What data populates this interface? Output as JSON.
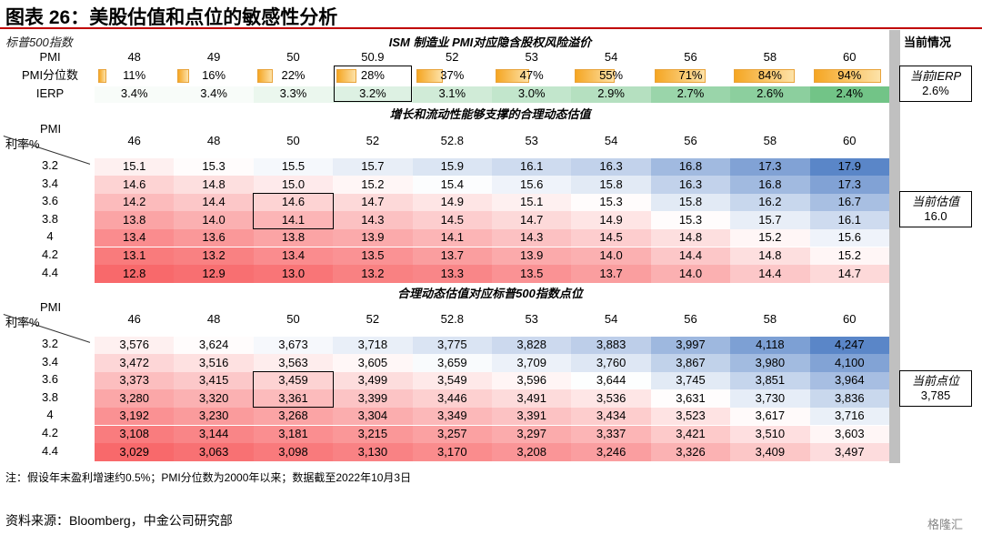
{
  "title": "图表 26：美股估值和点位的敏感性分析",
  "left_label": "标普500指数",
  "current_header": "当前情况",
  "colors": {
    "accent_red": "#c00000",
    "bar_orange": "#f5a623",
    "green": "#63be7b",
    "blue": "#5a86c8",
    "red": "#f8696b"
  },
  "chart_data": [
    {
      "type": "table",
      "title": "ISM 制造业 PMI对应隐含股权风险溢价",
      "rows": [
        {
          "label": "PMI",
          "values": [
            "48",
            "49",
            "50",
            "50.9",
            "52",
            "53",
            "54",
            "56",
            "58",
            "60"
          ]
        },
        {
          "label": "PMI分位数",
          "values": [
            "11%",
            "16%",
            "22%",
            "28%",
            "37%",
            "47%",
            "55%",
            "71%",
            "84%",
            "94%"
          ],
          "fractions": [
            0.11,
            0.16,
            0.22,
            0.28,
            0.37,
            0.47,
            0.55,
            0.71,
            0.84,
            0.94
          ]
        },
        {
          "label": "IERP",
          "values": [
            "3.4%",
            "3.4%",
            "3.3%",
            "3.2%",
            "3.1%",
            "3.0%",
            "2.9%",
            "2.7%",
            "2.6%",
            "2.4%"
          ],
          "numbers": [
            3.4,
            3.4,
            3.3,
            3.2,
            3.1,
            3.0,
            2.9,
            2.7,
            2.6,
            2.4
          ]
        }
      ],
      "highlight_col": 3
    },
    {
      "type": "heatmap",
      "title": "增长和流动性能够支撑的合理动态估值",
      "col_header": "PMI",
      "row_header": "利率%",
      "columns": [
        "46",
        "48",
        "50",
        "52",
        "52.8",
        "53",
        "54",
        "56",
        "58",
        "60"
      ],
      "rows": [
        "3.2",
        "3.4",
        "3.6",
        "3.8",
        "4",
        "4.2",
        "4.4"
      ],
      "values": [
        [
          15.1,
          15.3,
          15.5,
          15.7,
          15.9,
          16.1,
          16.3,
          16.8,
          17.3,
          17.9
        ],
        [
          14.6,
          14.8,
          15.0,
          15.2,
          15.4,
          15.6,
          15.8,
          16.3,
          16.8,
          17.3
        ],
        [
          14.2,
          14.4,
          14.6,
          14.7,
          14.9,
          15.1,
          15.3,
          15.8,
          16.2,
          16.7
        ],
        [
          13.8,
          14.0,
          14.1,
          14.3,
          14.5,
          14.7,
          14.9,
          15.3,
          15.7,
          16.1
        ],
        [
          13.4,
          13.6,
          13.8,
          13.9,
          14.1,
          14.3,
          14.5,
          14.8,
          15.2,
          15.6
        ],
        [
          13.1,
          13.2,
          13.4,
          13.5,
          13.7,
          13.9,
          14.0,
          14.4,
          14.8,
          15.2
        ],
        [
          12.8,
          12.9,
          13.0,
          13.2,
          13.3,
          13.5,
          13.7,
          14.0,
          14.4,
          14.7
        ]
      ],
      "decimals": 1,
      "highlight": {
        "rows": [
          2,
          3
        ],
        "col": 2
      }
    },
    {
      "type": "heatmap",
      "title": "合理动态估值对应标普500指数点位",
      "col_header": "PMI",
      "row_header": "利率%",
      "columns": [
        "46",
        "48",
        "50",
        "52",
        "52.8",
        "53",
        "54",
        "56",
        "58",
        "60"
      ],
      "rows": [
        "3.2",
        "3.4",
        "3.6",
        "3.8",
        "4",
        "4.2",
        "4.4"
      ],
      "values": [
        [
          3576,
          3624,
          3673,
          3718,
          3775,
          3828,
          3883,
          3997,
          4118,
          4247
        ],
        [
          3472,
          3516,
          3563,
          3605,
          3659,
          3709,
          3760,
          3867,
          3980,
          4100
        ],
        [
          3373,
          3415,
          3459,
          3499,
          3549,
          3596,
          3644,
          3745,
          3851,
          3964
        ],
        [
          3280,
          3320,
          3361,
          3399,
          3446,
          3491,
          3536,
          3631,
          3730,
          3836
        ],
        [
          3192,
          3230,
          3268,
          3304,
          3349,
          3391,
          3434,
          3523,
          3617,
          3716
        ],
        [
          3108,
          3144,
          3181,
          3215,
          3257,
          3297,
          3337,
          3421,
          3510,
          3603
        ],
        [
          3029,
          3063,
          3098,
          3130,
          3170,
          3208,
          3246,
          3326,
          3409,
          3497
        ]
      ],
      "decimals": 0,
      "highlight": {
        "rows": [
          2,
          3
        ],
        "col": 2
      }
    }
  ],
  "current": {
    "ierp": {
      "label": "当前IERP",
      "value": "2.6%"
    },
    "valuation": {
      "label": "当前估值",
      "value": "16.0"
    },
    "index": {
      "label": "当前点位",
      "value": "3,785"
    }
  },
  "note": "注：假设年末盈利增速约0.5%；PMI分位数为2000年以来；数据截至2022年10月3日",
  "source": "资料来源：Bloomberg，中金公司研究部",
  "watermark": "格隆汇"
}
